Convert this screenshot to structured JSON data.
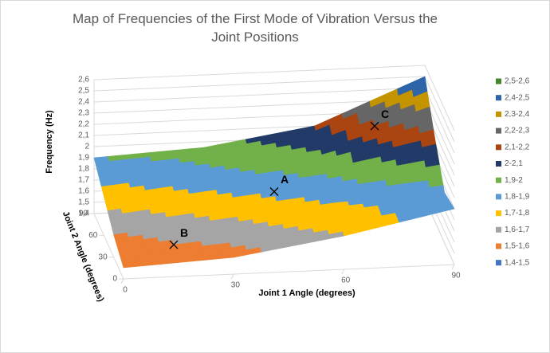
{
  "chart_data": {
    "type": "surface",
    "title": "Map of Frequencies of the First Mode of Vibration Versus the Joint Positions",
    "x_label": "Joint 1 Angle (degrees)",
    "y_label": "Joint 2 Angle (degrees)",
    "z_label": "Frequency (Hz)",
    "x": [
      0,
      30,
      60,
      90
    ],
    "y": [
      0,
      30,
      60,
      90
    ],
    "xlim": [
      0,
      90
    ],
    "ylim": [
      0,
      90
    ],
    "values": [
      [
        1.5,
        1.55,
        1.7,
        1.9
      ],
      [
        1.6,
        1.7,
        1.8,
        1.85
      ],
      [
        1.75,
        1.85,
        1.95,
        2.15
      ],
      [
        1.9,
        1.95,
        2.1,
        2.5
      ]
    ],
    "zlim": [
      1.4,
      2.6
    ],
    "zticks": [
      {
        "value": 1.4,
        "label": "1,4"
      },
      {
        "value": 1.5,
        "label": "1,5"
      },
      {
        "value": 1.6,
        "label": "1,6"
      },
      {
        "value": 1.7,
        "label": "1,7"
      },
      {
        "value": 1.8,
        "label": "1,8"
      },
      {
        "value": 1.9,
        "label": "1,9"
      },
      2,
      {
        "value": 2.1,
        "label": "2,1"
      },
      {
        "value": 2.2,
        "label": "2,2"
      },
      {
        "value": 2.3,
        "label": "2,3"
      },
      {
        "value": 2.4,
        "label": "2,4"
      },
      {
        "value": 2.5,
        "label": "2,5"
      },
      {
        "value": 2.6,
        "label": "2,6"
      }
    ],
    "series": [
      {
        "name": "2,5-2,6",
        "color": "#43862b"
      },
      {
        "name": "2,4-2,5",
        "color": "#2e64a8"
      },
      {
        "name": "2,3-2,4",
        "color": "#c49400"
      },
      {
        "name": "2,2-2,3",
        "color": "#666666"
      },
      {
        "name": "2,1-2,2",
        "color": "#aa4410"
      },
      {
        "name": "2-2,1",
        "color": "#213a68"
      },
      {
        "name": "1,9-2",
        "color": "#72b04a"
      },
      {
        "name": "1,8-1,9",
        "color": "#5b9bd5"
      },
      {
        "name": "1,7-1,8",
        "color": "#ffc000"
      },
      {
        "name": "1,6-1,7",
        "color": "#a5a5a5"
      },
      {
        "name": "1,5-1,6",
        "color": "#ed7d31"
      },
      {
        "name": "1,4-1,5",
        "color": "#4472c4"
      }
    ],
    "annotations": [
      {
        "text": "A",
        "x": 45,
        "y": 45
      },
      {
        "text": "B",
        "x": 15,
        "y": 15
      },
      {
        "text": "C",
        "x": 75,
        "y": 75
      }
    ],
    "legend": "right"
  }
}
